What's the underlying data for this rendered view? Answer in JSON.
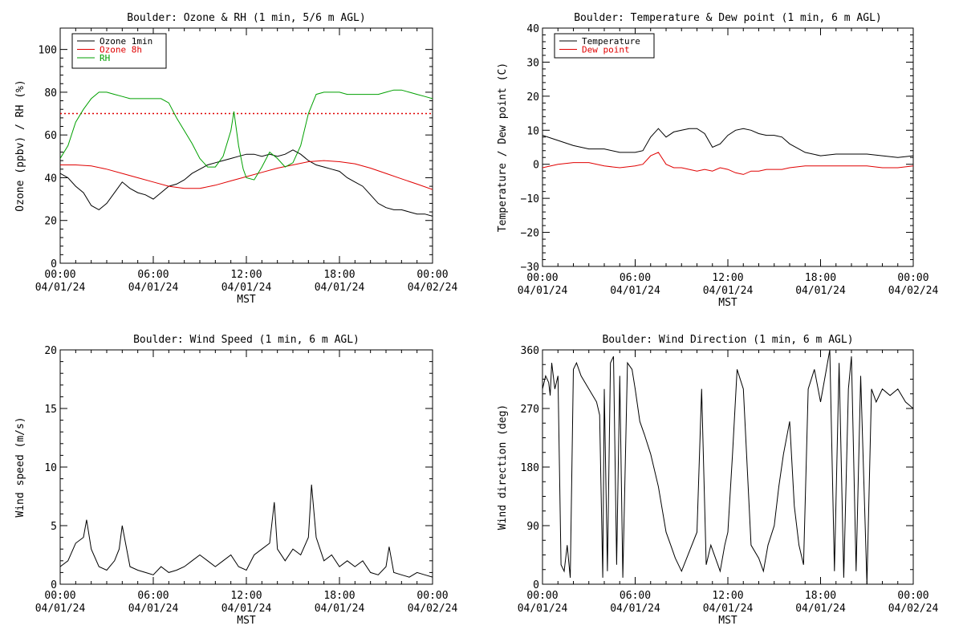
{
  "chart_data": [
    {
      "type": "line",
      "title": "Boulder: Ozone & RH (1 min, 5/6 m AGL)",
      "xlabel": "MST",
      "ylabel": "Ozone (ppbv) / RH (%)",
      "xlim": [
        "04/01/24 00:00",
        "04/02/24 00:00"
      ],
      "ylim": [
        0,
        110
      ],
      "x_ticks": [
        {
          "time": "00:00",
          "date": "04/01/24"
        },
        {
          "time": "06:00",
          "date": "04/01/24"
        },
        {
          "time": "12:00",
          "date": "04/01/24"
        },
        {
          "time": "18:00",
          "date": "04/01/24"
        },
        {
          "time": "00:00",
          "date": "04/02/24"
        }
      ],
      "y_ticks": [
        "0",
        "20",
        "40",
        "60",
        "80",
        "100"
      ],
      "legend_position": "top-left",
      "reference_line": {
        "y": 70,
        "color": "#e00000",
        "style": "dotted"
      },
      "series": [
        {
          "name": "Ozone 1min",
          "color": "#000000",
          "x_hours": [
            0,
            0.5,
            1,
            1.5,
            2,
            2.5,
            3,
            3.5,
            4,
            4.5,
            5,
            5.5,
            6,
            6.5,
            7,
            7.5,
            8,
            8.5,
            9,
            9.5,
            10,
            10.5,
            11,
            11.5,
            12,
            12.5,
            13,
            13.5,
            14,
            14.5,
            15,
            15.5,
            16,
            16.5,
            17,
            17.5,
            18,
            18.5,
            19,
            19.5,
            20,
            20.5,
            21,
            21.5,
            22,
            22.5,
            23,
            23.5,
            24
          ],
          "values": [
            42,
            40,
            36,
            33,
            27,
            25,
            28,
            33,
            38,
            35,
            33,
            32,
            30,
            33,
            36,
            37,
            39,
            42,
            44,
            46,
            47,
            48,
            49,
            50,
            51,
            51,
            50,
            51,
            50,
            51,
            53,
            51,
            48,
            46,
            45,
            44,
            43,
            40,
            38,
            36,
            32,
            28,
            26,
            25,
            25,
            24,
            23,
            23,
            22
          ]
        },
        {
          "name": "Ozone 8h",
          "color": "#e00000",
          "x_hours": [
            0,
            1,
            2,
            3,
            4,
            5,
            6,
            7,
            8,
            9,
            10,
            11,
            12,
            13,
            14,
            15,
            16,
            17,
            18,
            19,
            20,
            21,
            22,
            23,
            24
          ],
          "values": [
            46,
            46,
            45.5,
            44,
            42,
            40,
            38,
            36,
            35,
            35,
            36.5,
            38.5,
            40.5,
            42.5,
            44.5,
            46,
            47.5,
            48,
            47.5,
            46.5,
            44.5,
            42,
            39.5,
            37,
            34.5
          ]
        },
        {
          "name": "RH",
          "color": "#00a000",
          "x_hours": [
            0,
            0.5,
            1,
            1.5,
            2,
            2.5,
            3,
            3.5,
            4,
            4.5,
            5,
            5.5,
            6,
            6.5,
            7,
            7.5,
            8,
            8.5,
            9,
            9.5,
            10,
            10.5,
            11,
            11.2,
            11.5,
            11.8,
            12,
            12.5,
            13,
            13.5,
            14,
            14.5,
            15,
            15.5,
            16,
            16.5,
            17,
            17.5,
            18,
            18.5,
            19,
            19.5,
            20,
            20.5,
            21,
            21.5,
            22,
            22.5,
            23,
            23.5,
            24
          ],
          "values": [
            49,
            55,
            66,
            72,
            77,
            80,
            80,
            79,
            78,
            77,
            77,
            77,
            77,
            77,
            75,
            68,
            62,
            56,
            49,
            45,
            45,
            50,
            62,
            71,
            55,
            44,
            40,
            39,
            45,
            52,
            49,
            45,
            47,
            55,
            70,
            79,
            80,
            80,
            80,
            79,
            79,
            79,
            79,
            79,
            80,
            81,
            81,
            80,
            79,
            78,
            77
          ]
        }
      ]
    },
    {
      "type": "line",
      "title": "Boulder: Temperature & Dew point (1 min, 6 m AGL)",
      "xlabel": "MST",
      "ylabel": "Temperature / Dew point (C)",
      "xlim": [
        "04/01/24 00:00",
        "04/02/24 00:00"
      ],
      "ylim": [
        -30,
        40
      ],
      "x_ticks": [
        {
          "time": "00:00",
          "date": "04/01/24"
        },
        {
          "time": "06:00",
          "date": "04/01/24"
        },
        {
          "time": "12:00",
          "date": "04/01/24"
        },
        {
          "time": "18:00",
          "date": "04/01/24"
        },
        {
          "time": "00:00",
          "date": "04/02/24"
        }
      ],
      "y_ticks": [
        "−30",
        "−20",
        "−10",
        "0",
        "10",
        "20",
        "30",
        "40"
      ],
      "legend_position": "top-left",
      "series": [
        {
          "name": "Temperature",
          "color": "#000000",
          "x_hours": [
            0,
            1,
            2,
            3,
            4,
            5,
            6,
            6.5,
            7,
            7.5,
            8,
            8.5,
            9,
            9.5,
            10,
            10.5,
            11,
            11.5,
            12,
            12.5,
            13,
            13.5,
            14,
            14.5,
            15,
            15.5,
            16,
            17,
            18,
            19,
            20,
            21,
            22,
            23,
            24
          ],
          "values": [
            8.5,
            7,
            5.5,
            4.5,
            4.5,
            3.5,
            3.5,
            4,
            8,
            10.5,
            8,
            9.5,
            10,
            10.5,
            10.5,
            9,
            5,
            6,
            8.5,
            10,
            10.5,
            10,
            9,
            8.5,
            8.5,
            8,
            6,
            3.5,
            2.5,
            3,
            3,
            3,
            2.5,
            2,
            2.5
          ]
        },
        {
          "name": "Dew point",
          "color": "#e00000",
          "x_hours": [
            0,
            1,
            2,
            3,
            4,
            5,
            6,
            6.5,
            7,
            7.5,
            8,
            8.5,
            9,
            9.5,
            10,
            10.5,
            11,
            11.5,
            12,
            12.5,
            13,
            13.5,
            14,
            14.5,
            15,
            15.5,
            16,
            17,
            18,
            19,
            20,
            21,
            22,
            23,
            24
          ],
          "values": [
            -1,
            0,
            0.5,
            0.5,
            -0.5,
            -1,
            -0.5,
            0,
            2.5,
            3.5,
            0,
            -1,
            -1,
            -1.5,
            -2,
            -1.5,
            -2,
            -1,
            -1.5,
            -2.5,
            -3,
            -2,
            -2,
            -1.5,
            -1.5,
            -1.5,
            -1,
            -0.5,
            -0.5,
            -0.5,
            -0.5,
            -0.5,
            -1,
            -1,
            -0.5
          ]
        }
      ]
    },
    {
      "type": "line",
      "title": "Boulder: Wind Speed (1 min, 6 m AGL)",
      "xlabel": "MST",
      "ylabel": "Wind speed (m/s)",
      "xlim": [
        "04/01/24 00:00",
        "04/02/24 00:00"
      ],
      "ylim": [
        0,
        20
      ],
      "x_ticks": [
        {
          "time": "00:00",
          "date": "04/01/24"
        },
        {
          "time": "06:00",
          "date": "04/01/24"
        },
        {
          "time": "12:00",
          "date": "04/01/24"
        },
        {
          "time": "18:00",
          "date": "04/01/24"
        },
        {
          "time": "00:00",
          "date": "04/02/24"
        }
      ],
      "y_ticks": [
        "0",
        "5",
        "10",
        "15",
        "20"
      ],
      "series": [
        {
          "name": "",
          "color": "#000000",
          "x_hours": [
            0,
            0.5,
            1,
            1.5,
            1.7,
            2,
            2.5,
            3,
            3.5,
            3.8,
            4,
            4.5,
            5,
            5.5,
            6,
            6.5,
            7,
            7.5,
            8,
            8.5,
            9,
            9.5,
            10,
            10.5,
            11,
            11.5,
            12,
            12.5,
            13,
            13.5,
            13.8,
            14,
            14.5,
            15,
            15.5,
            16,
            16.2,
            16.5,
            17,
            17.5,
            18,
            18.5,
            19,
            19.5,
            20,
            20.5,
            21,
            21.2,
            21.5,
            22,
            22.5,
            23,
            23.5,
            24
          ],
          "values": [
            1.5,
            2,
            3.5,
            4,
            5.5,
            3,
            1.5,
            1.2,
            2,
            3,
            5,
            1.5,
            1.2,
            1,
            0.8,
            1.5,
            1,
            1.2,
            1.5,
            2,
            2.5,
            2,
            1.5,
            2,
            2.5,
            1.5,
            1.2,
            2.5,
            3,
            3.5,
            7,
            3,
            2,
            3,
            2.5,
            4,
            8.5,
            4,
            2,
            2.5,
            1.5,
            2,
            1.5,
            2,
            1,
            0.8,
            1.5,
            3.2,
            1,
            0.8,
            0.6,
            1,
            0.8,
            0.6
          ]
        }
      ]
    },
    {
      "type": "line",
      "title": "Boulder: Wind Direction (1 min, 6 m AGL)",
      "xlabel": "MST",
      "ylabel": "Wind direction (deg)",
      "xlim": [
        "04/01/24 00:00",
        "04/02/24 00:00"
      ],
      "ylim": [
        0,
        360
      ],
      "x_ticks": [
        {
          "time": "00:00",
          "date": "04/01/24"
        },
        {
          "time": "06:00",
          "date": "04/01/24"
        },
        {
          "time": "12:00",
          "date": "04/01/24"
        },
        {
          "time": "18:00",
          "date": "04/01/24"
        },
        {
          "time": "00:00",
          "date": "04/02/24"
        }
      ],
      "y_ticks": [
        "0",
        "90",
        "180",
        "270",
        "360"
      ],
      "series": [
        {
          "name": "",
          "color": "#000000",
          "x_hours": [
            0,
            0.2,
            0.4,
            0.5,
            0.6,
            0.8,
            1,
            1.2,
            1.4,
            1.6,
            1.8,
            2,
            2.2,
            2.5,
            3,
            3.5,
            3.7,
            3.9,
            4,
            4.2,
            4.4,
            4.6,
            4.8,
            5,
            5.2,
            5.5,
            5.8,
            6,
            6.3,
            6.6,
            7,
            7.5,
            8,
            8.3,
            8.6,
            9,
            9.5,
            10,
            10.3,
            10.6,
            10.9,
            11.2,
            11.5,
            11.8,
            12,
            12.3,
            12.6,
            13,
            13.5,
            14,
            14.3,
            14.6,
            15,
            15.3,
            15.6,
            16,
            16.3,
            16.6,
            16.9,
            17.2,
            17.6,
            18,
            18.3,
            18.6,
            18.9,
            19.2,
            19.5,
            19.8,
            20,
            20.3,
            20.6,
            21,
            21.3,
            21.6,
            22,
            22.5,
            23,
            23.5,
            24
          ],
          "values": [
            300,
            320,
            310,
            290,
            340,
            300,
            320,
            30,
            20,
            60,
            10,
            330,
            340,
            320,
            300,
            280,
            260,
            10,
            300,
            20,
            340,
            350,
            30,
            320,
            10,
            340,
            330,
            300,
            250,
            230,
            200,
            150,
            80,
            60,
            40,
            20,
            50,
            80,
            300,
            30,
            60,
            40,
            20,
            60,
            80,
            200,
            330,
            300,
            60,
            40,
            20,
            60,
            90,
            150,
            200,
            250,
            120,
            60,
            30,
            300,
            330,
            280,
            320,
            360,
            20,
            340,
            10,
            300,
            350,
            20,
            320,
            0,
            300,
            280,
            300,
            290,
            300,
            280,
            270
          ]
        }
      ]
    }
  ]
}
